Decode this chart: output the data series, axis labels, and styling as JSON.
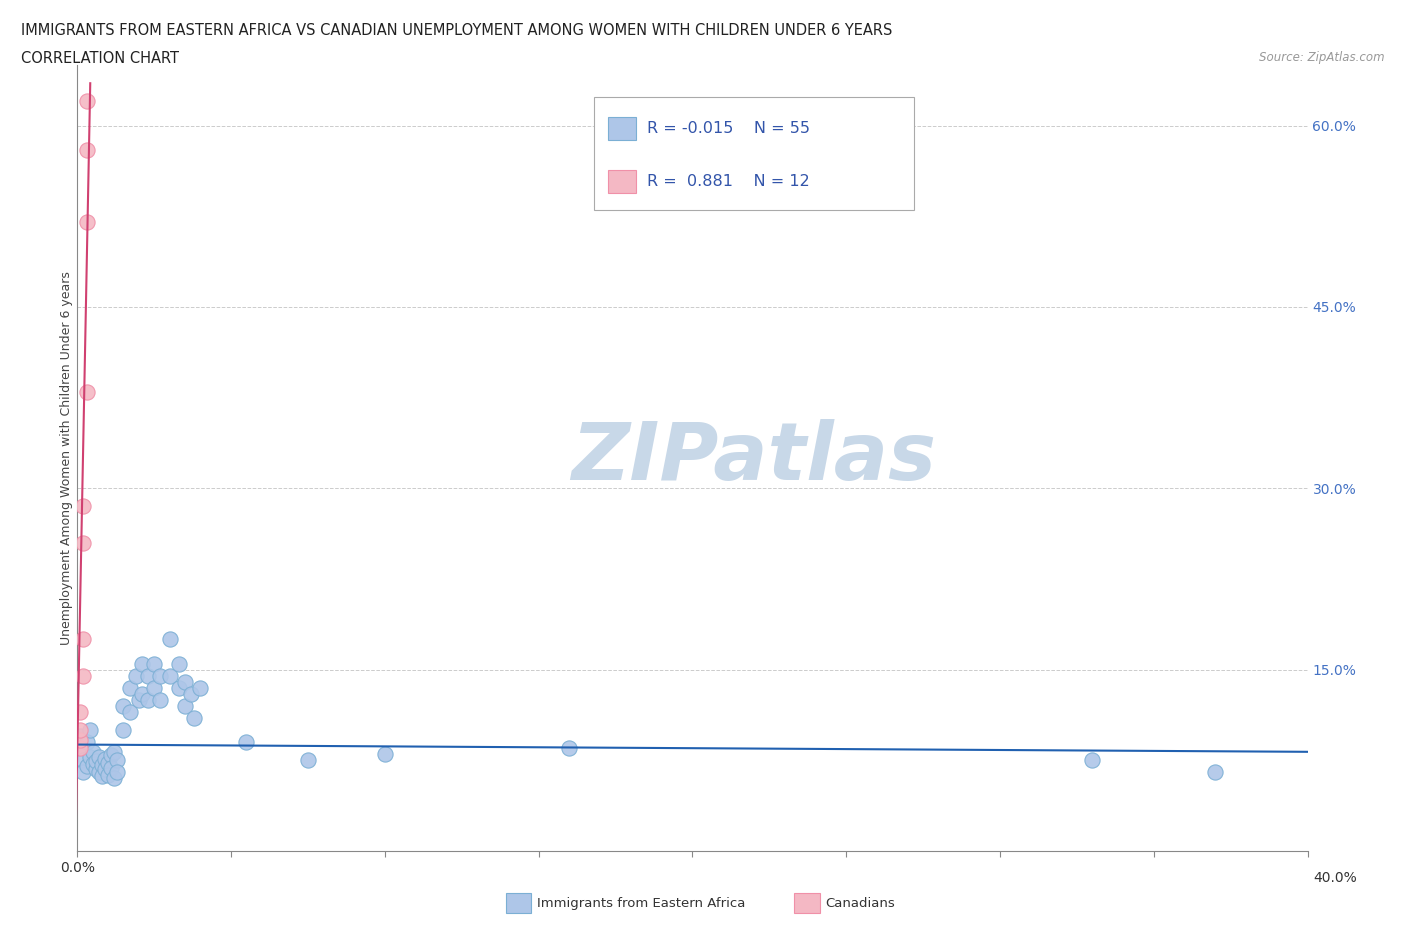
{
  "title_line1": "IMMIGRANTS FROM EASTERN AFRICA VS CANADIAN UNEMPLOYMENT AMONG WOMEN WITH CHILDREN UNDER 6 YEARS",
  "title_line2": "CORRELATION CHART",
  "source_text": "Source: ZipAtlas.com",
  "ylabel": "Unemployment Among Women with Children Under 6 years",
  "x_min": 0.0,
  "x_max": 0.4,
  "y_min": 0.0,
  "y_max": 0.65,
  "background_color": "#ffffff",
  "watermark_text": "ZIPatlas",
  "watermark_color": "#c8d8e8",
  "blue_color": "#7bafd4",
  "blue_fill": "#aec6e8",
  "pink_color": "#f090a8",
  "pink_fill": "#f4b8c4",
  "trend_blue_color": "#2060b0",
  "trend_pink_color": "#d04070",
  "grid_color": "#cccccc",
  "blue_scatter": [
    [
      0.001,
      0.095
    ],
    [
      0.001,
      0.085
    ],
    [
      0.002,
      0.075
    ],
    [
      0.002,
      0.065
    ],
    [
      0.003,
      0.09
    ],
    [
      0.003,
      0.07
    ],
    [
      0.004,
      0.1
    ],
    [
      0.004,
      0.078
    ],
    [
      0.005,
      0.082
    ],
    [
      0.005,
      0.072
    ],
    [
      0.006,
      0.068
    ],
    [
      0.006,
      0.074
    ],
    [
      0.007,
      0.078
    ],
    [
      0.007,
      0.065
    ],
    [
      0.008,
      0.071
    ],
    [
      0.008,
      0.062
    ],
    [
      0.009,
      0.076
    ],
    [
      0.009,
      0.068
    ],
    [
      0.01,
      0.073
    ],
    [
      0.01,
      0.063
    ],
    [
      0.011,
      0.079
    ],
    [
      0.011,
      0.069
    ],
    [
      0.012,
      0.082
    ],
    [
      0.012,
      0.06
    ],
    [
      0.013,
      0.075
    ],
    [
      0.013,
      0.065
    ],
    [
      0.015,
      0.12
    ],
    [
      0.015,
      0.1
    ],
    [
      0.017,
      0.135
    ],
    [
      0.017,
      0.115
    ],
    [
      0.019,
      0.145
    ],
    [
      0.02,
      0.125
    ],
    [
      0.021,
      0.155
    ],
    [
      0.021,
      0.13
    ],
    [
      0.023,
      0.145
    ],
    [
      0.023,
      0.125
    ],
    [
      0.025,
      0.155
    ],
    [
      0.025,
      0.135
    ],
    [
      0.027,
      0.145
    ],
    [
      0.027,
      0.125
    ],
    [
      0.03,
      0.175
    ],
    [
      0.03,
      0.145
    ],
    [
      0.033,
      0.155
    ],
    [
      0.033,
      0.135
    ],
    [
      0.035,
      0.14
    ],
    [
      0.035,
      0.12
    ],
    [
      0.037,
      0.13
    ],
    [
      0.038,
      0.11
    ],
    [
      0.04,
      0.135
    ],
    [
      0.055,
      0.09
    ],
    [
      0.075,
      0.075
    ],
    [
      0.1,
      0.08
    ],
    [
      0.16,
      0.085
    ],
    [
      0.33,
      0.075
    ],
    [
      0.37,
      0.065
    ]
  ],
  "pink_scatter": [
    [
      0.001,
      0.085
    ],
    [
      0.001,
      0.092
    ],
    [
      0.001,
      0.1
    ],
    [
      0.001,
      0.115
    ],
    [
      0.002,
      0.145
    ],
    [
      0.002,
      0.175
    ],
    [
      0.002,
      0.255
    ],
    [
      0.002,
      0.285
    ],
    [
      0.003,
      0.38
    ],
    [
      0.003,
      0.52
    ],
    [
      0.003,
      0.58
    ],
    [
      0.003,
      0.62
    ]
  ],
  "blue_trend_x": [
    0.0,
    0.4
  ],
  "blue_trend_y": [
    0.088,
    0.082
  ],
  "pink_trend_x": [
    -0.0005,
    0.0042
  ],
  "pink_trend_y": [
    0.02,
    0.635
  ],
  "legend_r1_text": "R = -0.015",
  "legend_n1_text": "N = 55",
  "legend_r2_text": "R =  0.881",
  "legend_n2_text": "N = 12",
  "legend_text_color": "#3355aa",
  "bottom_legend_labels": [
    "Immigrants from Eastern Africa",
    "Canadians"
  ]
}
